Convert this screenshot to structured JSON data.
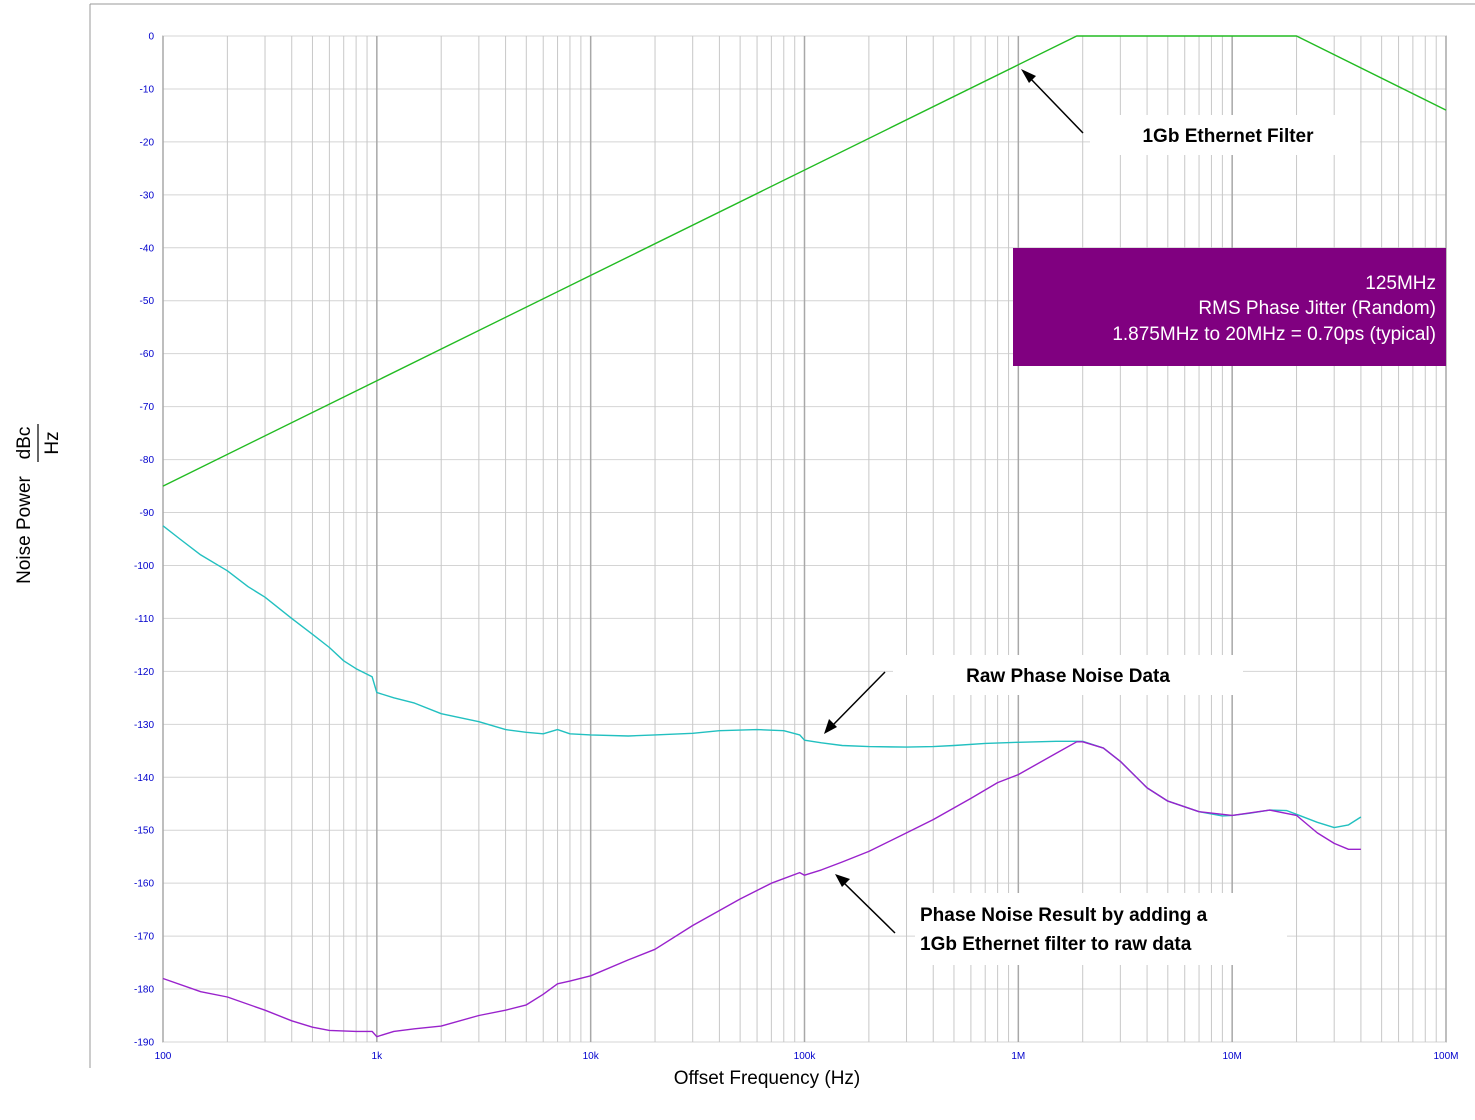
{
  "chart_data": {
    "type": "line",
    "xlabel": "Offset Frequency (Hz)",
    "ylabel": "Noise Power",
    "ylabel_unit_numerator": "dBc",
    "ylabel_unit_denominator": "Hz",
    "x_scale": "log",
    "xlim": [
      100,
      100000000
    ],
    "ylim": [
      -190,
      0
    ],
    "grid": true,
    "x_tick_labels": [
      "100",
      "1k",
      "10k",
      "100k",
      "1M",
      "10M",
      "100M"
    ],
    "y_ticks": [
      0,
      -10,
      -20,
      -30,
      -40,
      -50,
      -60,
      -70,
      -80,
      -90,
      -100,
      -110,
      -120,
      -130,
      -140,
      -150,
      -160,
      -170,
      -180,
      -190
    ],
    "series": [
      {
        "name": "1Gb Ethernet Filter",
        "color": "#22bb22",
        "points": [
          [
            100,
            -85
          ],
          [
            1875000,
            0
          ],
          [
            20000000,
            0
          ],
          [
            100000000,
            -14
          ]
        ]
      },
      {
        "name": "Raw Phase Noise Data",
        "color": "#22c0c0",
        "points": [
          [
            100,
            -92.5
          ],
          [
            120,
            -95
          ],
          [
            150,
            -98
          ],
          [
            200,
            -101
          ],
          [
            250,
            -104
          ],
          [
            300,
            -106
          ],
          [
            400,
            -110
          ],
          [
            500,
            -113
          ],
          [
            600,
            -115.5
          ],
          [
            700,
            -118
          ],
          [
            800,
            -119.5
          ],
          [
            950,
            -121
          ],
          [
            1000,
            -124
          ],
          [
            1200,
            -125
          ],
          [
            1500,
            -126
          ],
          [
            2000,
            -128
          ],
          [
            3000,
            -129.5
          ],
          [
            4000,
            -131
          ],
          [
            5000,
            -131.5
          ],
          [
            6000,
            -131.8
          ],
          [
            7000,
            -131
          ],
          [
            8000,
            -131.8
          ],
          [
            10000,
            -132
          ],
          [
            15000,
            -132.2
          ],
          [
            20000,
            -132
          ],
          [
            30000,
            -131.7
          ],
          [
            40000,
            -131.2
          ],
          [
            60000,
            -131
          ],
          [
            80000,
            -131.2
          ],
          [
            95000,
            -132
          ],
          [
            100000,
            -133
          ],
          [
            120000,
            -133.5
          ],
          [
            150000,
            -134
          ],
          [
            200000,
            -134.2
          ],
          [
            300000,
            -134.3
          ],
          [
            400000,
            -134.2
          ],
          [
            500000,
            -134
          ],
          [
            700000,
            -133.6
          ],
          [
            1000000,
            -133.4
          ],
          [
            1500000,
            -133.2
          ],
          [
            2000000,
            -133.2
          ],
          [
            2500000,
            -134.5
          ],
          [
            3000000,
            -137
          ],
          [
            4000000,
            -142
          ],
          [
            5000000,
            -144.5
          ],
          [
            7000000,
            -146.5
          ],
          [
            9000000,
            -147.3
          ],
          [
            10000000,
            -147.2
          ],
          [
            12000000,
            -146.8
          ],
          [
            15000000,
            -146.2
          ],
          [
            18000000,
            -146.3
          ],
          [
            20000000,
            -147
          ],
          [
            25000000,
            -148.5
          ],
          [
            30000000,
            -149.5
          ],
          [
            35000000,
            -149
          ],
          [
            40000000,
            -147.5
          ]
        ]
      },
      {
        "name": "Phase Noise Result by adding a 1Gb Ethernet filter to raw data",
        "color": "#9922cc",
        "points": [
          [
            100,
            -178
          ],
          [
            150,
            -180.5
          ],
          [
            200,
            -181.5
          ],
          [
            300,
            -184
          ],
          [
            400,
            -186
          ],
          [
            500,
            -187.2
          ],
          [
            600,
            -187.8
          ],
          [
            800,
            -188
          ],
          [
            950,
            -188
          ],
          [
            1000,
            -189
          ],
          [
            1200,
            -188
          ],
          [
            1500,
            -187.5
          ],
          [
            2000,
            -187
          ],
          [
            3000,
            -185
          ],
          [
            4000,
            -184
          ],
          [
            5000,
            -183
          ],
          [
            6000,
            -181
          ],
          [
            7000,
            -179
          ],
          [
            8000,
            -178.5
          ],
          [
            10000,
            -177.5
          ],
          [
            15000,
            -174.5
          ],
          [
            20000,
            -172.5
          ],
          [
            30000,
            -168
          ],
          [
            50000,
            -163
          ],
          [
            70000,
            -160
          ],
          [
            95000,
            -158
          ],
          [
            100000,
            -158.5
          ],
          [
            120000,
            -157.5
          ],
          [
            150000,
            -156
          ],
          [
            200000,
            -154
          ],
          [
            300000,
            -150.5
          ],
          [
            400000,
            -148
          ],
          [
            600000,
            -144
          ],
          [
            800000,
            -141
          ],
          [
            1000000,
            -139.5
          ],
          [
            1500000,
            -135.5
          ],
          [
            1875000,
            -133.3
          ],
          [
            2000000,
            -133.3
          ],
          [
            2500000,
            -134.5
          ],
          [
            3000000,
            -137
          ],
          [
            4000000,
            -142
          ],
          [
            5000000,
            -144.5
          ],
          [
            7000000,
            -146.5
          ],
          [
            10000000,
            -147.2
          ],
          [
            15000000,
            -146.2
          ],
          [
            20000000,
            -147.2
          ],
          [
            25000000,
            -150.5
          ],
          [
            30000000,
            -152.5
          ],
          [
            35000000,
            -153.6
          ],
          [
            40000000,
            -153.6
          ]
        ]
      }
    ]
  },
  "annotations": {
    "filter_label": "1Gb Ethernet Filter",
    "raw_label": "Raw Phase Noise Data",
    "result_label_line1": "Phase Noise Result by adding a",
    "result_label_line2": "1Gb Ethernet filter to raw data"
  },
  "info_box": {
    "line1": "125MHz",
    "line2": "RMS Phase Jitter (Random)",
    "line3": "1.875MHz to 20MHz = 0.70ps (typical)",
    "background": "#800080"
  }
}
